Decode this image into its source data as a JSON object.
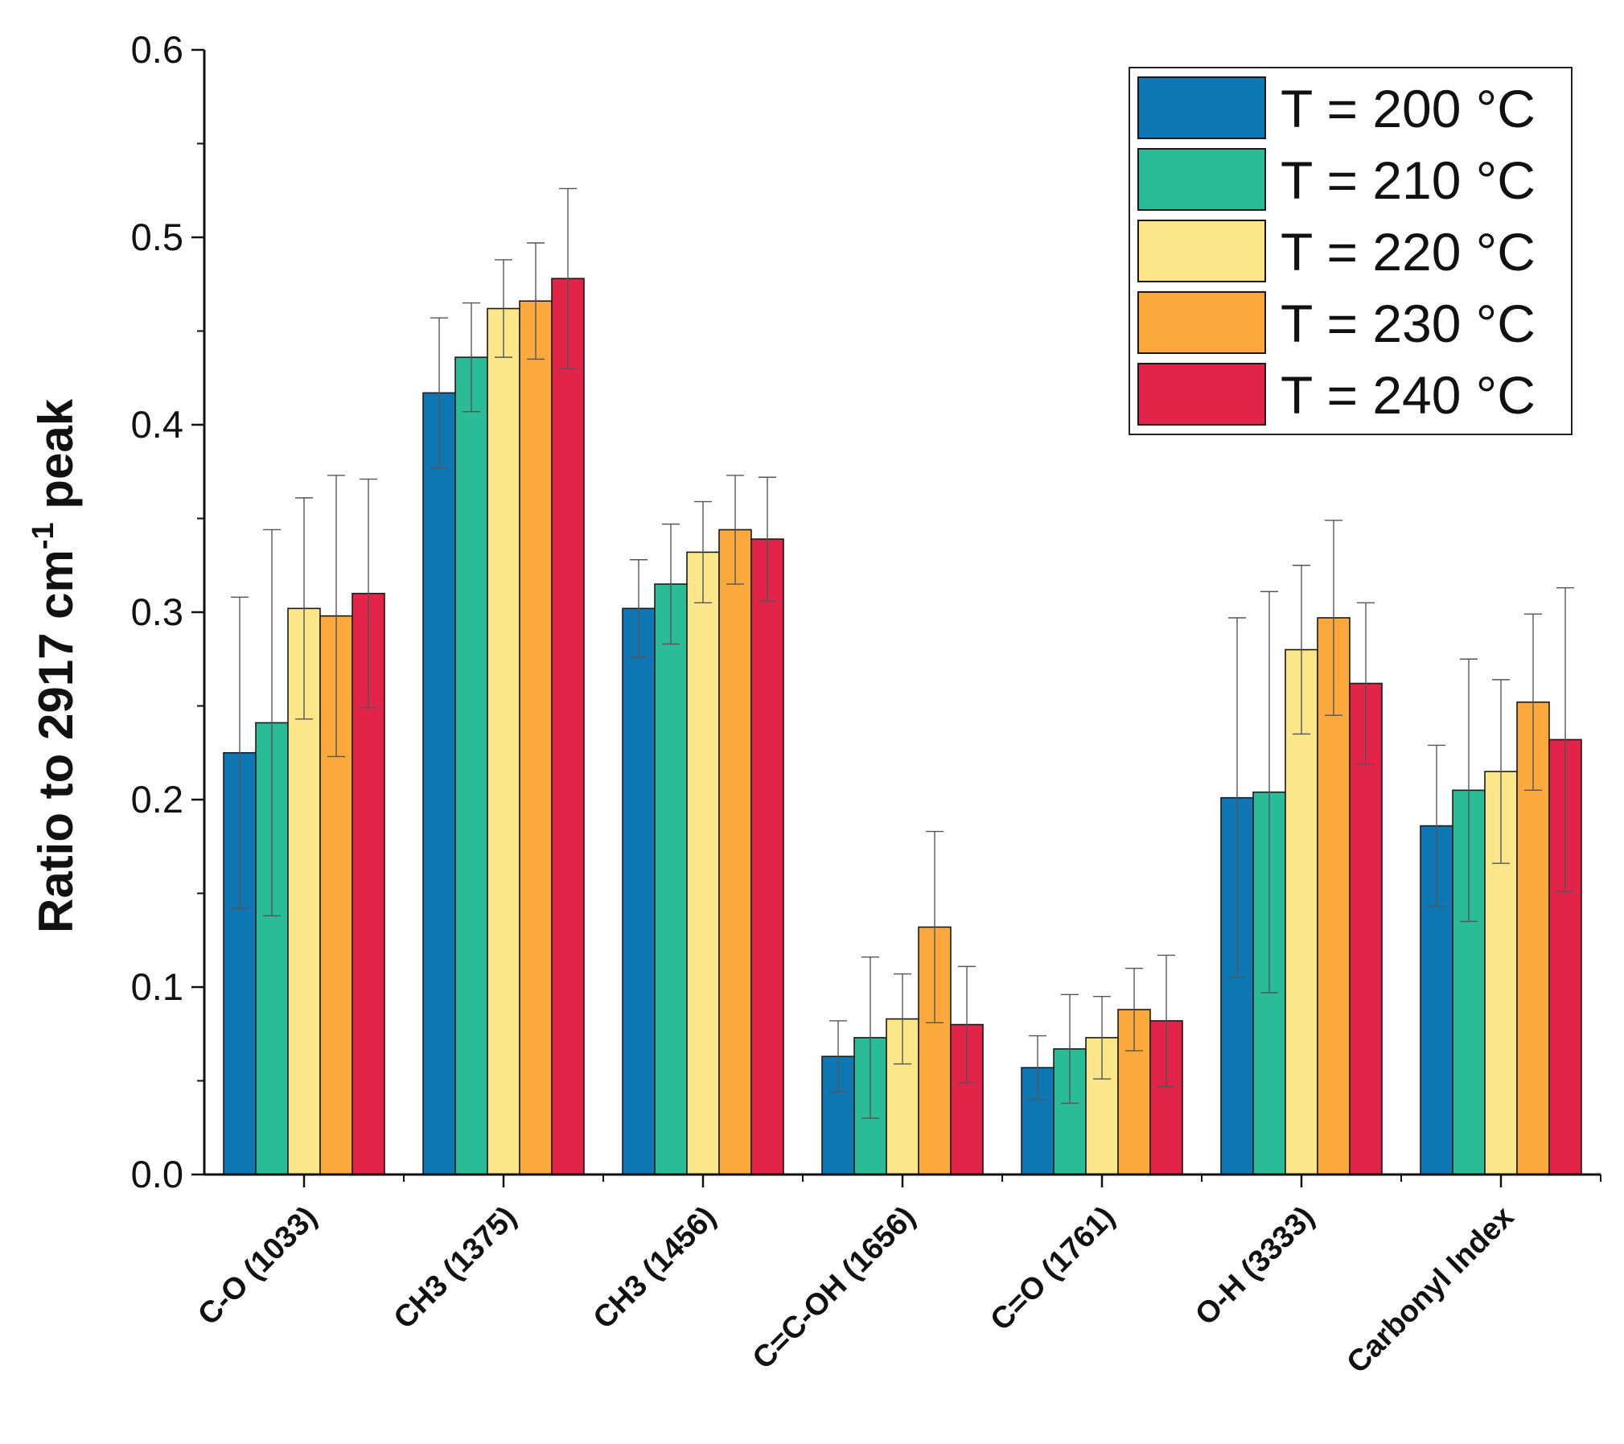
{
  "chart_data": {
    "type": "bar",
    "title": "",
    "xlabel": "",
    "ylabel": "Ratio to 2917 cm-1 peak",
    "ylabel_parts": {
      "before": "Ratio to 2917 cm",
      "sup": "-1",
      "after": " peak"
    },
    "ylim": [
      0.0,
      0.6
    ],
    "yticks": [
      "0.0",
      "0.1",
      "0.2",
      "0.3",
      "0.4",
      "0.5",
      "0.6"
    ],
    "ytick_values": [
      0.0,
      0.1,
      0.2,
      0.3,
      0.4,
      0.5,
      0.6
    ],
    "legend_position": "top-right",
    "categories": [
      "C-O (1033)",
      "CH3 (1375)",
      "CH3 (1456)",
      "C=C-OH (1656)",
      "C=O (1761)",
      "O-H (3333)",
      "Carbonyl Index"
    ],
    "series": [
      {
        "name": "T = 200 °C",
        "color": "#0f77b4",
        "values": [
          0.225,
          0.417,
          0.302,
          0.063,
          0.057,
          0.201,
          0.186
        ],
        "errors": [
          0.083,
          0.04,
          0.026,
          0.019,
          0.017,
          0.096,
          0.043
        ]
      },
      {
        "name": "T = 210 °C",
        "color": "#2cbb97",
        "values": [
          0.241,
          0.436,
          0.315,
          0.073,
          0.067,
          0.204,
          0.205
        ],
        "errors": [
          0.103,
          0.029,
          0.032,
          0.043,
          0.029,
          0.107,
          0.07
        ]
      },
      {
        "name": "T = 220 °C",
        "color": "#fbe78a",
        "values": [
          0.302,
          0.462,
          0.332,
          0.083,
          0.073,
          0.28,
          0.215
        ],
        "errors": [
          0.059,
          0.026,
          0.027,
          0.024,
          0.022,
          0.045,
          0.049
        ]
      },
      {
        "name": "T = 230 °C",
        "color": "#fba83c",
        "values": [
          0.298,
          0.466,
          0.344,
          0.132,
          0.088,
          0.297,
          0.252
        ],
        "errors": [
          0.075,
          0.031,
          0.029,
          0.051,
          0.022,
          0.052,
          0.047
        ]
      },
      {
        "name": "T = 240 °C",
        "color": "#e1244a",
        "values": [
          0.31,
          0.478,
          0.339,
          0.08,
          0.082,
          0.262,
          0.232
        ],
        "errors": [
          0.061,
          0.048,
          0.033,
          0.031,
          0.035,
          0.043,
          0.081
        ]
      }
    ]
  }
}
